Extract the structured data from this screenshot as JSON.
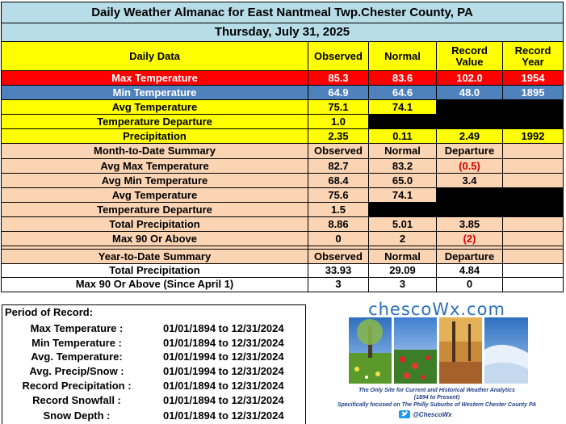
{
  "title": "Daily Weather Almanac for East Nantmeal Twp.Chester County, PA",
  "date": "Thursday, July 31, 2025",
  "daily": {
    "headers": [
      "Daily Data",
      "Observed",
      "Normal",
      "Record Value",
      "Record Year"
    ],
    "header_lines": {
      "record_value": [
        "Record",
        "Value"
      ],
      "record_year": [
        "Record",
        "Year"
      ]
    },
    "max_temp": {
      "label": "Max Temperature",
      "observed": "85.3",
      "normal": "83.6",
      "record": "102.0",
      "year": "1954"
    },
    "min_temp": {
      "label": "Min Temperature",
      "observed": "64.9",
      "normal": "64.6",
      "record": "48.0",
      "year": "1895"
    },
    "avg_temp": {
      "label": "Avg Temperature",
      "observed": "75.1",
      "normal": "74.1"
    },
    "temp_departure": {
      "label": "Temperature Departure",
      "observed": "1.0"
    },
    "precip": {
      "label": "Precipitation",
      "observed": "2.35",
      "normal": "0.11",
      "record": "2.49",
      "year": "1992"
    }
  },
  "mtd": {
    "headers": [
      "Month-to-Date Summary",
      "Observed",
      "Normal",
      "Departure"
    ],
    "rows": [
      {
        "label": "Avg Max Temperature",
        "observed": "82.7",
        "normal": "83.2",
        "departure": "(0.5)"
      },
      {
        "label": "Avg Min Temperature",
        "observed": "68.4",
        "normal": "65.0",
        "departure": "3.4"
      },
      {
        "label": "Avg Temperature",
        "observed": "75.6",
        "normal": "74.1",
        "departure": ""
      },
      {
        "label": "Temperature Departure",
        "observed": "1.5",
        "normal": "",
        "departure": ""
      },
      {
        "label": "Total Precipitation",
        "observed": "8.86",
        "normal": "5.01",
        "departure": "3.85"
      },
      {
        "label": "Max 90 Or Above",
        "observed": "0",
        "normal": "2",
        "departure": "(2)"
      }
    ]
  },
  "ytd": {
    "headers": [
      "Year-to-Date Summary",
      "Observed",
      "Normal",
      "Departure"
    ],
    "rows": [
      {
        "label": "Total Precipitation",
        "observed": "33.93",
        "normal": "29.09",
        "departure": "4.84"
      },
      {
        "label": "Max 90 Or Above (Since April 1)",
        "observed": "3",
        "normal": "3",
        "departure": "0"
      }
    ]
  },
  "period": {
    "title": "Period of Record:",
    "rows": [
      {
        "label": "Max Temperature :",
        "range": "01/01/1894 to 12/31/2024"
      },
      {
        "label": "Min Temperature :",
        "range": "01/01/1894 to 12/31/2024"
      },
      {
        "label": "Avg. Temperature:",
        "range": "01/01/1994 to 12/31/2024"
      },
      {
        "label": "Avg. Precip/Snow :",
        "range": "01/01/1994 to 12/31/2024"
      },
      {
        "label": "Record Precipitation :",
        "range": "01/01/1894 to 12/31/2024"
      },
      {
        "label": "Record Snowfall :",
        "range": "01/01/1894 to 12/31/2024"
      },
      {
        "label": "Snow Depth :",
        "range": "01/01/1894 to 12/31/2024"
      }
    ]
  },
  "brand": {
    "logo": "chescoWx.com",
    "tagline1": "The Only Site for Current and Historical Weather Analytics",
    "tagline2": "(1894 to Present)",
    "tagline3": "Specifically focused on The Philly Suburbs of Western Chester County PA",
    "handle": "@ChescoWx"
  },
  "colors": {
    "title_bg": "#b7dde8",
    "yellow": "#ffff00",
    "red": "#ff0000",
    "blue": "#4f81bd",
    "peach": "#fbd4b4",
    "black": "#000000",
    "departure_neg": "#d40000"
  }
}
